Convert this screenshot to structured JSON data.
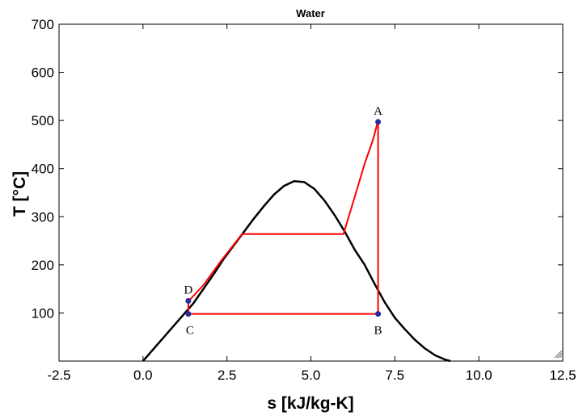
{
  "chart_data": {
    "type": "line",
    "title": "Water",
    "xlabel": "s [kJ/kg-K]",
    "ylabel": "T [°C]",
    "xlim": [
      -2.5,
      12.5
    ],
    "ylim": [
      0,
      700
    ],
    "x_ticks": [
      -2.5,
      0.0,
      2.5,
      5.0,
      7.5,
      10.0,
      12.5
    ],
    "x_tick_labels": [
      "-2.5",
      "0.0",
      "2.5",
      "5.0",
      "7.5",
      "10.0",
      "12.5"
    ],
    "y_ticks": [
      100,
      200,
      300,
      400,
      500,
      600,
      700
    ],
    "y_tick_labels": [
      "100",
      "200",
      "300",
      "400",
      "500",
      "600",
      "700"
    ],
    "grid": false,
    "colors": {
      "dome": "#000000",
      "cycle": "#ff0000",
      "points": "#2a2a9a"
    },
    "series": [
      {
        "x": [
          0.0,
          0.3,
          0.6,
          0.9,
          1.2,
          1.5,
          1.8,
          2.1,
          2.4,
          2.7,
          3.0,
          3.3,
          3.6,
          3.9,
          4.2,
          4.5,
          4.8,
          5.1,
          5.4,
          5.7,
          6.0,
          6.3,
          6.6,
          6.9,
          7.2,
          7.5,
          7.8,
          8.1,
          8.4,
          8.7,
          9.0,
          9.15
        ],
        "y": [
          0,
          24,
          48,
          72,
          96,
          120,
          150,
          180,
          212,
          240,
          268,
          296,
          322,
          346,
          364,
          374,
          372,
          358,
          334,
          304,
          270,
          232,
          200,
          160,
          122,
          90,
          66,
          44,
          26,
          12,
          3,
          0
        ]
      },
      {
        "x": [
          7.0,
          7.0,
          1.35,
          1.35,
          1.8,
          2.3,
          2.95,
          5.97,
          6.3,
          6.6,
          6.85,
          7.0
        ],
        "y": [
          500,
          98,
          98,
          124,
          158,
          206,
          264,
          264,
          340,
          410,
          460,
          500
        ]
      }
    ],
    "points": [
      {
        "label": "A",
        "x": 7.0,
        "y": 497
      },
      {
        "label": "B",
        "x": 7.0,
        "y": 98
      },
      {
        "label": "C",
        "x": 1.35,
        "y": 98
      },
      {
        "label": "D",
        "x": 1.35,
        "y": 125
      }
    ]
  }
}
